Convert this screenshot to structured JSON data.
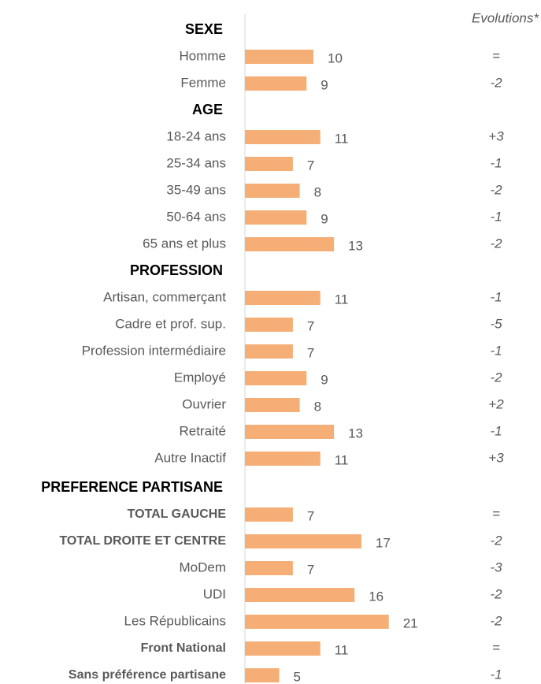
{
  "chart_data": {
    "type": "bar",
    "orientation": "horizontal",
    "color": "#f5ae75",
    "evolutions_title": "Evolutions*",
    "categories": [
      "SEXE",
      "Homme",
      "Femme",
      "AGE",
      "18-24 ans",
      "25-34 ans",
      "35-49 ans",
      "50-64 ans",
      "65 ans et plus",
      "PROFESSION",
      "Artisan, commerçant",
      "Cadre et prof. sup.",
      "Profession intermédiaire",
      "Employé",
      "Ouvrier",
      "Retraité",
      "Autre Inactif",
      "PREFERENCE PARTISANE",
      "TOTAL GAUCHE",
      "TOTAL DROITE ET CENTRE",
      "MoDem",
      "UDI",
      "Les Républicains",
      "Front National",
      "Sans préférence partisane"
    ],
    "values": [
      null,
      10,
      9,
      null,
      11,
      7,
      8,
      9,
      13,
      null,
      11,
      7,
      7,
      9,
      8,
      13,
      11,
      null,
      7,
      17,
      7,
      16,
      21,
      11,
      5
    ],
    "evolutions": [
      null,
      "=",
      "-2",
      null,
      "+3",
      "-1",
      "-2",
      "-1",
      "-2",
      null,
      "-1",
      "-5",
      "-1",
      "-2",
      "+2",
      "-1",
      "+3",
      null,
      "=",
      "-2",
      "-3",
      "-2",
      "-2",
      "=",
      "-1"
    ],
    "xlim": [
      0,
      40
    ]
  }
}
